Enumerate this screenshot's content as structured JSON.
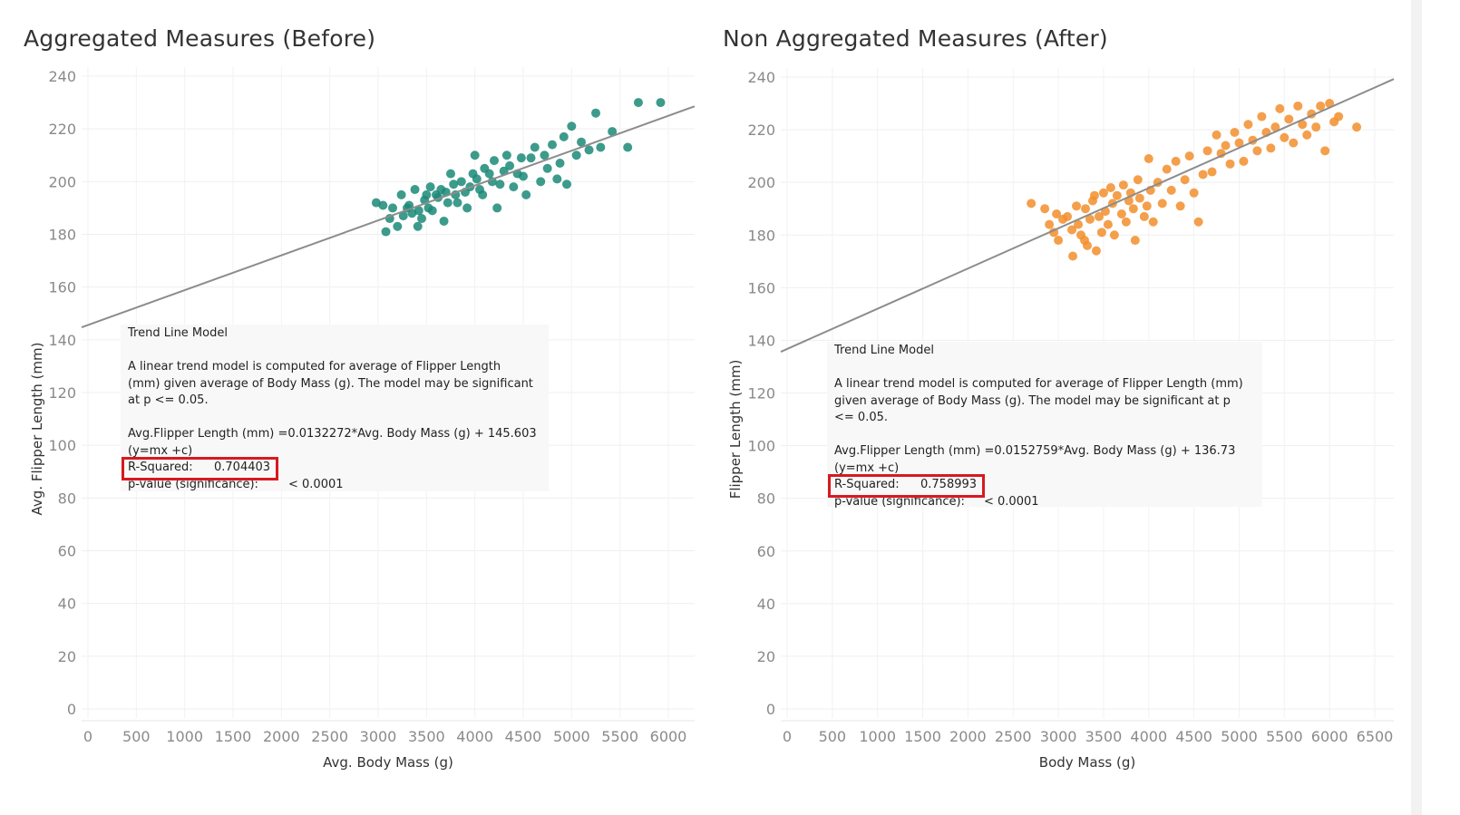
{
  "chart_data": [
    {
      "type": "scatter",
      "title": "Aggregated Measures (Before)",
      "xlabel": "Avg. Body Mass (g)",
      "ylabel": "Avg. Flipper Length (mm)",
      "xlim": [
        0,
        6200
      ],
      "ylim": [
        0,
        240
      ],
      "xticks": [
        0,
        500,
        1000,
        1500,
        2000,
        2500,
        3000,
        3500,
        4000,
        4500,
        5000,
        5500,
        6000
      ],
      "yticks": [
        0,
        20,
        40,
        60,
        80,
        100,
        120,
        140,
        160,
        180,
        200,
        220,
        240
      ],
      "color": "#1b8a77",
      "trend_line": {
        "slope": 0.0132272,
        "intercept": 145.603
      },
      "points": [
        [
          2980,
          192
        ],
        [
          3050,
          191
        ],
        [
          3080,
          181
        ],
        [
          3120,
          186
        ],
        [
          3150,
          190
        ],
        [
          3200,
          183
        ],
        [
          3240,
          195
        ],
        [
          3260,
          187
        ],
        [
          3300,
          190
        ],
        [
          3320,
          191
        ],
        [
          3350,
          188
        ],
        [
          3380,
          197
        ],
        [
          3410,
          183
        ],
        [
          3420,
          189
        ],
        [
          3450,
          186
        ],
        [
          3480,
          193
        ],
        [
          3500,
          195
        ],
        [
          3520,
          190
        ],
        [
          3540,
          198
        ],
        [
          3560,
          189
        ],
        [
          3600,
          195
        ],
        [
          3620,
          194
        ],
        [
          3650,
          197
        ],
        [
          3680,
          185
        ],
        [
          3700,
          196
        ],
        [
          3720,
          192
        ],
        [
          3750,
          203
        ],
        [
          3780,
          199
        ],
        [
          3800,
          195
        ],
        [
          3820,
          192
        ],
        [
          3860,
          200
        ],
        [
          3900,
          196
        ],
        [
          3920,
          190
        ],
        [
          3950,
          198
        ],
        [
          3980,
          203
        ],
        [
          4000,
          210
        ],
        [
          4020,
          201
        ],
        [
          4050,
          197
        ],
        [
          4080,
          195
        ],
        [
          4100,
          205
        ],
        [
          4150,
          203
        ],
        [
          4180,
          200
        ],
        [
          4200,
          208
        ],
        [
          4230,
          190
        ],
        [
          4260,
          199
        ],
        [
          4300,
          204
        ],
        [
          4330,
          210
        ],
        [
          4360,
          206
        ],
        [
          4400,
          198
        ],
        [
          4440,
          203
        ],
        [
          4480,
          209
        ],
        [
          4500,
          202
        ],
        [
          4530,
          195
        ],
        [
          4580,
          209
        ],
        [
          4620,
          213
        ],
        [
          4680,
          200
        ],
        [
          4720,
          210
        ],
        [
          4750,
          205
        ],
        [
          4800,
          214
        ],
        [
          4850,
          201
        ],
        [
          4880,
          207
        ],
        [
          4920,
          217
        ],
        [
          4950,
          199
        ],
        [
          5000,
          221
        ],
        [
          5050,
          210
        ],
        [
          5100,
          215
        ],
        [
          5180,
          212
        ],
        [
          5250,
          226
        ],
        [
          5300,
          213
        ],
        [
          5420,
          219
        ],
        [
          5580,
          213
        ],
        [
          5690,
          230
        ],
        [
          5920,
          230
        ]
      ],
      "tooltip": {
        "heading": "Trend Line Model",
        "description": "A linear trend model is computed for average of Flipper Length (mm) given average of Body Mass (g).  The model may be significant at p <= 0.05.",
        "equation": "Avg.Flipper Length (mm) =0.0132272*Avg. Body Mass (g) + 145.603",
        "equation_form": "(y=mx +c)",
        "r_squared_label": "R-Squared:",
        "r_squared_value": "0.704403",
        "p_value_label": "p-value (significance):",
        "p_value_value": "< 0.0001"
      }
    },
    {
      "type": "scatter",
      "title": "Non Aggregated Measures (After)",
      "xlabel": "Body Mass (g)",
      "ylabel": "Flipper Length (mm)",
      "xlim": [
        0,
        6700
      ],
      "ylim": [
        0,
        240
      ],
      "xticks": [
        0,
        500,
        1000,
        1500,
        2000,
        2500,
        3000,
        3500,
        4000,
        4500,
        5000,
        5500,
        6000,
        6500
      ],
      "yticks": [
        0,
        20,
        40,
        60,
        80,
        100,
        120,
        140,
        160,
        180,
        200,
        220,
        240
      ],
      "color": "#f28e2b",
      "trend_line": {
        "slope": 0.0152759,
        "intercept": 136.73
      },
      "points": [
        [
          2700,
          192
        ],
        [
          2850,
          190
        ],
        [
          2900,
          184
        ],
        [
          2950,
          181
        ],
        [
          2980,
          188
        ],
        [
          3000,
          178
        ],
        [
          3050,
          186
        ],
        [
          3100,
          187
        ],
        [
          3150,
          182
        ],
        [
          3160,
          172
        ],
        [
          3200,
          191
        ],
        [
          3220,
          184
        ],
        [
          3250,
          180
        ],
        [
          3290,
          178
        ],
        [
          3300,
          190
        ],
        [
          3320,
          176
        ],
        [
          3350,
          186
        ],
        [
          3380,
          193
        ],
        [
          3400,
          195
        ],
        [
          3420,
          174
        ],
        [
          3450,
          187
        ],
        [
          3480,
          181
        ],
        [
          3500,
          196
        ],
        [
          3520,
          189
        ],
        [
          3550,
          184
        ],
        [
          3580,
          198
        ],
        [
          3600,
          192
        ],
        [
          3620,
          180
        ],
        [
          3650,
          195
        ],
        [
          3700,
          188
        ],
        [
          3720,
          199
        ],
        [
          3750,
          185
        ],
        [
          3780,
          193
        ],
        [
          3800,
          196
        ],
        [
          3830,
          190
        ],
        [
          3850,
          178
        ],
        [
          3880,
          201
        ],
        [
          3900,
          194
        ],
        [
          3950,
          187
        ],
        [
          3980,
          191
        ],
        [
          4000,
          209
        ],
        [
          4020,
          197
        ],
        [
          4050,
          185
        ],
        [
          4100,
          200
        ],
        [
          4150,
          192
        ],
        [
          4200,
          205
        ],
        [
          4250,
          197
        ],
        [
          4300,
          208
        ],
        [
          4350,
          191
        ],
        [
          4400,
          201
        ],
        [
          4450,
          210
        ],
        [
          4500,
          196
        ],
        [
          4550,
          185
        ],
        [
          4600,
          203
        ],
        [
          4650,
          212
        ],
        [
          4700,
          204
        ],
        [
          4750,
          218
        ],
        [
          4800,
          211
        ],
        [
          4850,
          214
        ],
        [
          4900,
          207
        ],
        [
          4950,
          219
        ],
        [
          5000,
          215
        ],
        [
          5050,
          208
        ],
        [
          5100,
          222
        ],
        [
          5150,
          216
        ],
        [
          5200,
          212
        ],
        [
          5250,
          225
        ],
        [
          5300,
          219
        ],
        [
          5350,
          213
        ],
        [
          5400,
          221
        ],
        [
          5450,
          228
        ],
        [
          5500,
          217
        ],
        [
          5550,
          224
        ],
        [
          5600,
          215
        ],
        [
          5650,
          229
        ],
        [
          5700,
          222
        ],
        [
          5750,
          218
        ],
        [
          5800,
          226
        ],
        [
          5850,
          221
        ],
        [
          5900,
          229
        ],
        [
          5950,
          212
        ],
        [
          6000,
          230
        ],
        [
          6050,
          223
        ],
        [
          6100,
          225
        ],
        [
          6300,
          221
        ]
      ],
      "tooltip": {
        "heading": "Trend Line Model",
        "description": "A linear trend model is computed for average of Flipper Length (mm) given average of Body Mass (g).  The model may be significant at p <= 0.05.",
        "equation": "Avg.Flipper Length (mm) =0.0152759*Avg. Body Mass (g) + 136.73",
        "equation_form": "(y=mx +c)",
        "r_squared_label": "R-Squared:",
        "r_squared_value": "0.758993",
        "p_value_label": "p-value (significance):",
        "p_value_value": "< 0.0001"
      }
    }
  ]
}
